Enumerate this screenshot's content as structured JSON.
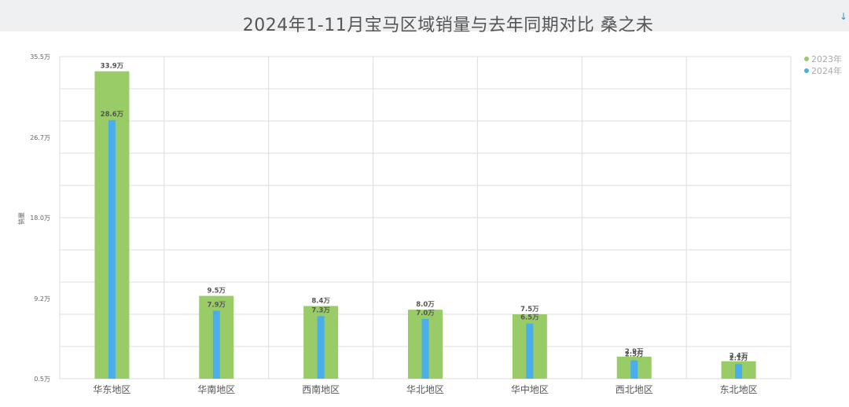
{
  "title": "2024年1-11月宝马区域销量与去年同期对比 桑之未",
  "chart_data": {
    "type": "bar",
    "title": "2024年1-11月宝马区域销量与去年同期对比 桑之未",
    "ylabel": "销量",
    "xlabel": "",
    "ylim": [
      0.5,
      35.5
    ],
    "grid": true,
    "legend_position": "top-right",
    "y_ticks": [
      "35.5万",
      "26.7万",
      "18.0万",
      "9.2万",
      "0.5万"
    ],
    "y_tick_values": [
      35.5,
      26.7,
      18.0,
      9.2,
      0.5
    ],
    "categories": [
      "华东地区",
      "华南地区",
      "西南地区",
      "华北地区",
      "华中地区",
      "西北地区",
      "东北地区"
    ],
    "series": [
      {
        "name": "2023年",
        "color": "#99cc66",
        "values": [
          33.9,
          9.5,
          8.4,
          8.0,
          7.5,
          2.9,
          2.4
        ],
        "labels": [
          "33.9万",
          "9.5万",
          "8.4万",
          "8.0万",
          "7.5万",
          "2.9万",
          "2.4万"
        ]
      },
      {
        "name": "2024年",
        "color": "#4aaeea",
        "values": [
          28.6,
          7.9,
          7.3,
          7.0,
          6.5,
          2.5,
          2.1
        ],
        "labels": [
          "28.6万",
          "7.9万",
          "7.3万",
          "7.0万",
          "6.5万",
          "2.5万",
          "2.1万"
        ]
      }
    ]
  }
}
